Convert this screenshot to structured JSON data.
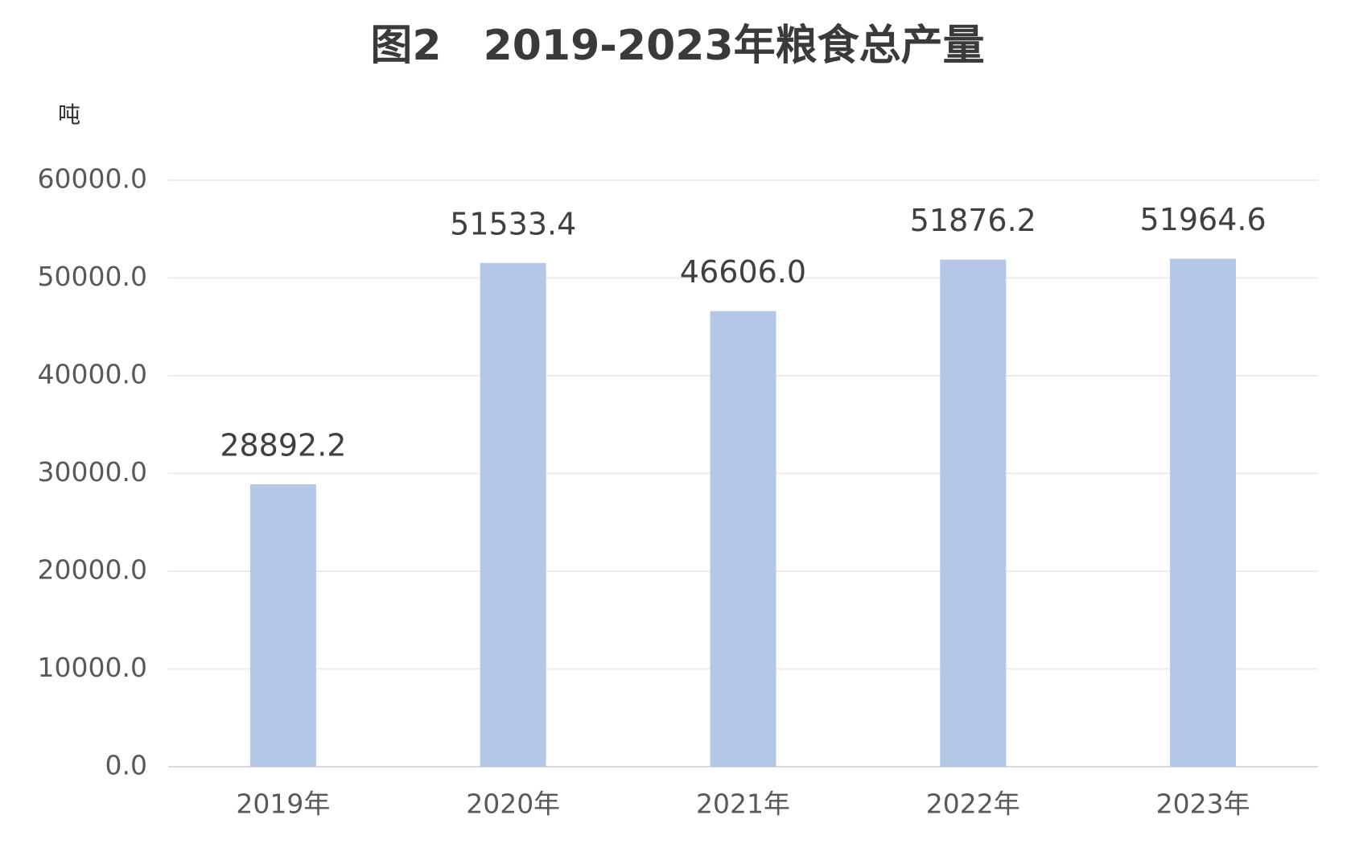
{
  "chart_data": {
    "type": "bar",
    "title": "图2　2019-2023年粮食总产量",
    "y_axis_label": "吨",
    "categories": [
      "2019年",
      "2020年",
      "2021年",
      "2022年",
      "2023年"
    ],
    "values": [
      28892.2,
      51533.4,
      46606.0,
      51876.2,
      51964.6
    ],
    "value_labels": [
      "28892.2",
      "51533.4",
      "46606.0",
      "51876.2",
      "51964.6"
    ],
    "color": "#b4c7e7",
    "ylim": [
      0,
      60000
    ],
    "yticks": [
      {
        "value": 0,
        "label": "0.0"
      },
      {
        "value": 10000,
        "label": "10000.0"
      },
      {
        "value": 20000,
        "label": "20000.0"
      },
      {
        "value": 30000,
        "label": "30000.0"
      },
      {
        "value": 40000,
        "label": "40000.0"
      },
      {
        "value": 50000,
        "label": "50000.0"
      },
      {
        "value": 60000,
        "label": "60000.0"
      }
    ],
    "grid": true
  }
}
